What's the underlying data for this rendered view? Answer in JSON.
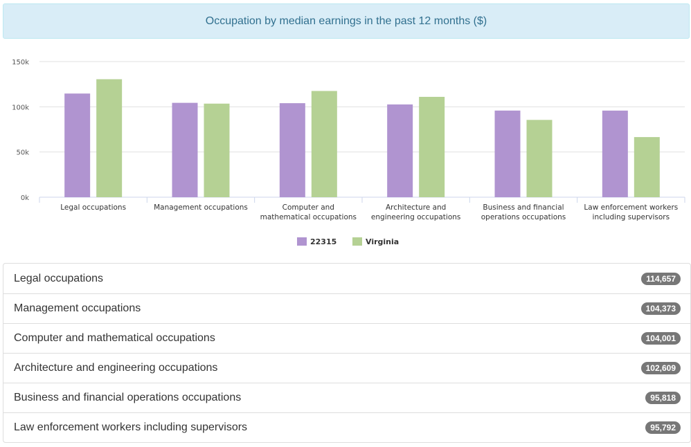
{
  "header": {
    "title": "Occupation by median earnings in the past 12 months ($)"
  },
  "colors": {
    "series_zip": "#b094d0",
    "series_state": "#b5d194",
    "badge": "#777777"
  },
  "chart_data": {
    "type": "bar",
    "title": "Occupation by median earnings in the past 12 months ($)",
    "categories": [
      [
        "Legal occupations"
      ],
      [
        "Management occupations"
      ],
      [
        "Computer and",
        "mathematical occupations"
      ],
      [
        "Architecture and",
        "engineering occupations"
      ],
      [
        "Business and financial",
        "operations occupations"
      ],
      [
        "Law enforcement workers",
        "including supervisors"
      ]
    ],
    "series": [
      {
        "name": "22315",
        "values": [
          114657,
          104373,
          104001,
          102609,
          95818,
          95792
        ]
      },
      {
        "name": "Virginia",
        "values": [
          130500,
          103500,
          117500,
          111000,
          85500,
          66500
        ]
      }
    ],
    "y_ticks": [
      {
        "value": 0,
        "label": "0k"
      },
      {
        "value": 50000,
        "label": "50k"
      },
      {
        "value": 100000,
        "label": "100k"
      },
      {
        "value": 150000,
        "label": "150k"
      }
    ],
    "ylim": [
      0,
      150000
    ],
    "legend_position": "bottom-center",
    "xlabel": "",
    "ylabel": ""
  },
  "list": {
    "items": [
      {
        "label": "Legal occupations",
        "value": "114,657"
      },
      {
        "label": "Management occupations",
        "value": "104,373"
      },
      {
        "label": "Computer and mathematical occupations",
        "value": "104,001"
      },
      {
        "label": "Architecture and engineering occupations",
        "value": "102,609"
      },
      {
        "label": "Business and financial operations occupations",
        "value": "95,818"
      },
      {
        "label": "Law enforcement workers including supervisors",
        "value": "95,792"
      }
    ]
  }
}
